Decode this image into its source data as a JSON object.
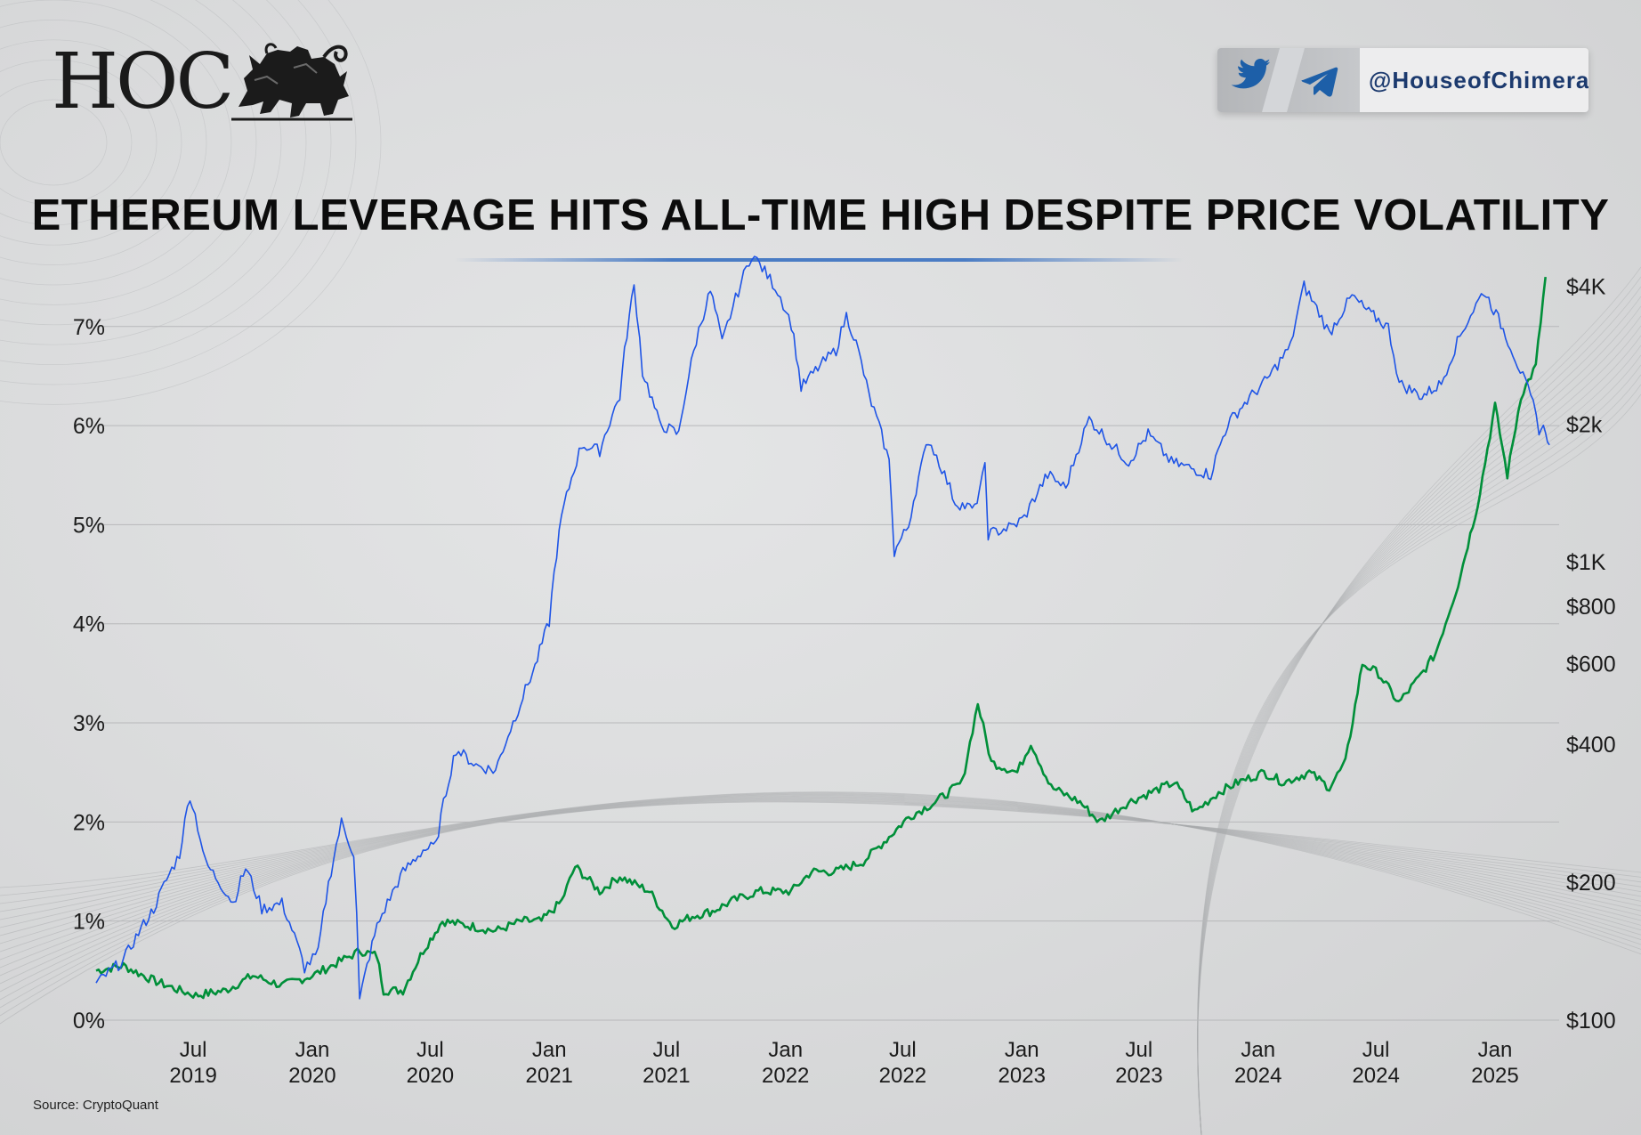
{
  "header": {
    "logo_text": "HOC",
    "social_handle": "@HouseofChimera",
    "social_icons": [
      "twitter-icon",
      "telegram-icon"
    ]
  },
  "title": "ETHEREUM LEVERAGE HITS ALL-TIME HIGH DESPITE PRICE VOLATILITY",
  "source": "Source: CryptoQuant",
  "colors": {
    "leverage_series": "#008f39",
    "price_series": "#1e54e6",
    "accent_rule": "#4a7cc4",
    "handle_text": "#1c3a6e"
  },
  "chart_data": {
    "type": "line",
    "title": "ETHEREUM LEVERAGE HITS ALL-TIME HIGH DESPITE PRICE VOLATILITY",
    "grid": true,
    "x_ticks": [
      {
        "date": "2019-07-01",
        "label": [
          "Jul",
          "2019"
        ]
      },
      {
        "date": "2020-01-01",
        "label": [
          "Jan",
          "2020"
        ]
      },
      {
        "date": "2020-07-01",
        "label": [
          "Jul",
          "2020"
        ]
      },
      {
        "date": "2021-01-01",
        "label": [
          "Jan",
          "2021"
        ]
      },
      {
        "date": "2021-07-01",
        "label": [
          "Jul",
          "2021"
        ]
      },
      {
        "date": "2022-01-01",
        "label": [
          "Jan",
          "2022"
        ]
      },
      {
        "date": "2022-07-01",
        "label": [
          "Jul",
          "2022"
        ]
      },
      {
        "date": "2023-01-01",
        "label": [
          "Jan",
          "2023"
        ]
      },
      {
        "date": "2023-07-01",
        "label": [
          "Jul",
          "2023"
        ]
      },
      {
        "date": "2024-01-01",
        "label": [
          "Jan",
          "2024"
        ]
      },
      {
        "date": "2024-07-01",
        "label": [
          "Jul",
          "2024"
        ]
      },
      {
        "date": "2025-01-01",
        "label": [
          "Jan",
          "2025"
        ]
      }
    ],
    "x_range": [
      "2019-02-01",
      "2025-04-10"
    ],
    "y_left": {
      "range": [
        0,
        7.6
      ],
      "ticks": [
        0,
        1,
        2,
        3,
        4,
        5,
        6,
        7
      ],
      "tick_labels": [
        "0%",
        "1%",
        "2%",
        "3%",
        "4%",
        "5%",
        "6%",
        "7%"
      ]
    },
    "y_right": {
      "scale": "log",
      "range": [
        100,
        4400
      ],
      "ticks": [
        100,
        200,
        400,
        600,
        800,
        1000,
        2000,
        4000
      ],
      "tick_labels": [
        "$100",
        "$200",
        "$400",
        "$600",
        "$800",
        "$1K",
        "$2k",
        "$4K"
      ]
    },
    "series": [
      {
        "axis": "left",
        "color": "#008f39",
        "points": [
          [
            "2019-02-01",
            0.5
          ],
          [
            "2019-03-15",
            0.55
          ],
          [
            "2019-05-01",
            0.4
          ],
          [
            "2019-06-10",
            0.3
          ],
          [
            "2019-07-05",
            0.25
          ],
          [
            "2019-08-20",
            0.3
          ],
          [
            "2019-10-01",
            0.45
          ],
          [
            "2019-11-15",
            0.35
          ],
          [
            "2020-01-01",
            0.45
          ],
          [
            "2020-02-15",
            0.6
          ],
          [
            "2020-03-15",
            0.7
          ],
          [
            "2020-04-10",
            0.65
          ],
          [
            "2020-04-20",
            0.3
          ],
          [
            "2020-05-20",
            0.3
          ],
          [
            "2020-06-20",
            0.7
          ],
          [
            "2020-07-20",
            1.0
          ],
          [
            "2020-09-01",
            0.95
          ],
          [
            "2020-10-10",
            0.9
          ],
          [
            "2020-11-20",
            1.0
          ],
          [
            "2020-12-20",
            1.0
          ],
          [
            "2021-01-20",
            1.2
          ],
          [
            "2021-02-10",
            1.55
          ],
          [
            "2021-03-20",
            1.3
          ],
          [
            "2021-04-20",
            1.45
          ],
          [
            "2021-06-05",
            1.3
          ],
          [
            "2021-07-10",
            0.95
          ],
          [
            "2021-08-10",
            1.05
          ],
          [
            "2021-09-10",
            1.1
          ],
          [
            "2021-10-10",
            1.2
          ],
          [
            "2021-11-20",
            1.3
          ],
          [
            "2021-12-20",
            1.3
          ],
          [
            "2022-01-10",
            1.3
          ],
          [
            "2022-02-10",
            1.5
          ],
          [
            "2022-03-20",
            1.5
          ],
          [
            "2022-05-01",
            1.6
          ],
          [
            "2022-06-10",
            1.85
          ],
          [
            "2022-07-10",
            2.05
          ],
          [
            "2022-08-20",
            2.2
          ],
          [
            "2022-10-01",
            2.4
          ],
          [
            "2022-10-25",
            3.2
          ],
          [
            "2022-11-15",
            2.6
          ],
          [
            "2022-12-25",
            2.5
          ],
          [
            "2023-01-15",
            2.8
          ],
          [
            "2023-02-15",
            2.35
          ],
          [
            "2023-04-01",
            2.2
          ],
          [
            "2023-05-01",
            2.0
          ],
          [
            "2023-06-15",
            2.2
          ],
          [
            "2023-07-20",
            2.3
          ],
          [
            "2023-08-25",
            2.4
          ],
          [
            "2023-09-25",
            2.1
          ],
          [
            "2023-11-01",
            2.3
          ],
          [
            "2023-12-01",
            2.4
          ],
          [
            "2024-01-10",
            2.5
          ],
          [
            "2024-02-10",
            2.4
          ],
          [
            "2024-03-20",
            2.5
          ],
          [
            "2024-04-20",
            2.35
          ],
          [
            "2024-05-15",
            2.6
          ],
          [
            "2024-06-10",
            3.6
          ],
          [
            "2024-07-05",
            3.5
          ],
          [
            "2024-08-05",
            3.2
          ],
          [
            "2024-09-05",
            3.45
          ],
          [
            "2024-10-01",
            3.7
          ],
          [
            "2024-11-05",
            4.4
          ],
          [
            "2024-12-05",
            5.2
          ],
          [
            "2025-01-01",
            6.2
          ],
          [
            "2025-01-20",
            5.5
          ],
          [
            "2025-02-10",
            6.3
          ],
          [
            "2025-03-05",
            6.6
          ],
          [
            "2025-03-20",
            7.5
          ]
        ]
      },
      {
        "axis": "right",
        "color": "#1e54e6",
        "points": [
          [
            "2019-02-01",
            120
          ],
          [
            "2019-03-15",
            135
          ],
          [
            "2019-05-01",
            175
          ],
          [
            "2019-06-10",
            230
          ],
          [
            "2019-06-26",
            310
          ],
          [
            "2019-07-20",
            220
          ],
          [
            "2019-09-01",
            180
          ],
          [
            "2019-09-20",
            215
          ],
          [
            "2019-10-15",
            175
          ],
          [
            "2019-11-15",
            180
          ],
          [
            "2019-12-20",
            130
          ],
          [
            "2020-01-10",
            140
          ],
          [
            "2020-02-15",
            270
          ],
          [
            "2020-03-05",
            230
          ],
          [
            "2020-03-14",
            110
          ],
          [
            "2020-04-10",
            160
          ],
          [
            "2020-05-20",
            210
          ],
          [
            "2020-06-20",
            235
          ],
          [
            "2020-07-10",
            240
          ],
          [
            "2020-08-10",
            390
          ],
          [
            "2020-09-10",
            360
          ],
          [
            "2020-10-10",
            350
          ],
          [
            "2020-11-10",
            460
          ],
          [
            "2020-12-10",
            590
          ],
          [
            "2021-01-01",
            740
          ],
          [
            "2021-01-20",
            1250
          ],
          [
            "2021-02-20",
            1800
          ],
          [
            "2021-03-20",
            1750
          ],
          [
            "2021-04-20",
            2300
          ],
          [
            "2021-05-12",
            4000
          ],
          [
            "2021-05-25",
            2600
          ],
          [
            "2021-06-20",
            2000
          ],
          [
            "2021-07-20",
            1900
          ],
          [
            "2021-08-20",
            3200
          ],
          [
            "2021-09-07",
            3900
          ],
          [
            "2021-09-25",
            3000
          ],
          [
            "2021-10-20",
            3900
          ],
          [
            "2021-11-10",
            4700
          ],
          [
            "2021-12-20",
            3900
          ],
          [
            "2022-01-10",
            3300
          ],
          [
            "2022-01-25",
            2400
          ],
          [
            "2022-02-20",
            2650
          ],
          [
            "2022-03-20",
            2900
          ],
          [
            "2022-04-05",
            3450
          ],
          [
            "2022-04-20",
            3000
          ],
          [
            "2022-05-10",
            2300
          ],
          [
            "2022-06-10",
            1650
          ],
          [
            "2022-06-18",
            1050
          ],
          [
            "2022-07-10",
            1200
          ],
          [
            "2022-08-10",
            1850
          ],
          [
            "2022-09-20",
            1350
          ],
          [
            "2022-10-20",
            1300
          ],
          [
            "2022-11-05",
            1600
          ],
          [
            "2022-11-10",
            1150
          ],
          [
            "2022-12-20",
            1200
          ],
          [
            "2023-01-05",
            1250
          ],
          [
            "2023-02-10",
            1550
          ],
          [
            "2023-03-10",
            1450
          ],
          [
            "2023-04-15",
            2050
          ],
          [
            "2023-05-20",
            1800
          ],
          [
            "2023-06-15",
            1650
          ],
          [
            "2023-07-15",
            1900
          ],
          [
            "2023-08-20",
            1650
          ],
          [
            "2023-09-20",
            1600
          ],
          [
            "2023-10-20",
            1550
          ],
          [
            "2023-11-15",
            2000
          ],
          [
            "2023-12-15",
            2250
          ],
          [
            "2024-01-15",
            2500
          ],
          [
            "2024-02-20",
            2950
          ],
          [
            "2024-03-12",
            4000
          ],
          [
            "2024-04-20",
            3150
          ],
          [
            "2024-05-25",
            3800
          ],
          [
            "2024-06-20",
            3500
          ],
          [
            "2024-07-20",
            3250
          ],
          [
            "2024-08-06",
            2450
          ],
          [
            "2024-09-10",
            2300
          ],
          [
            "2024-10-10",
            2450
          ],
          [
            "2024-11-12",
            3200
          ],
          [
            "2024-12-15",
            3900
          ],
          [
            "2025-01-10",
            3300
          ],
          [
            "2025-02-05",
            2700
          ],
          [
            "2025-03-01",
            2200
          ],
          [
            "2025-03-10",
            1950
          ],
          [
            "2025-03-20",
            1950
          ],
          [
            "2025-03-26",
            1800
          ]
        ]
      }
    ]
  }
}
